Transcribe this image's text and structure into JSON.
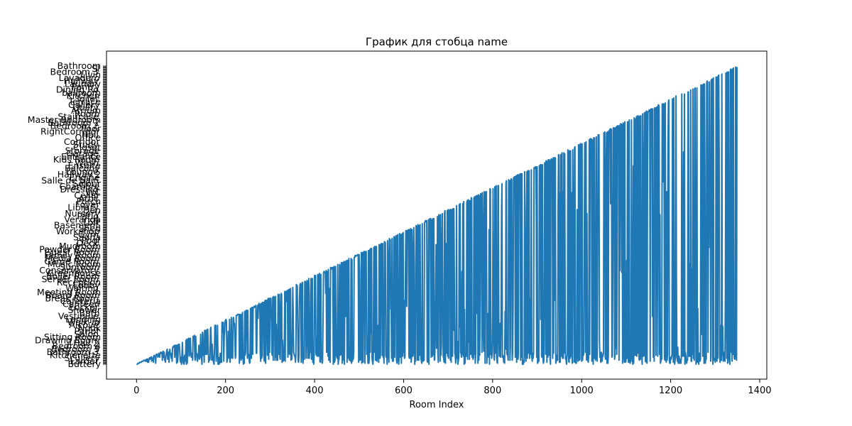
{
  "chart_data": {
    "type": "line",
    "title": "График для стобца name",
    "xlabel": "Room Index",
    "ylabel": "",
    "xlim": [
      -67.5,
      1416
    ],
    "xticks": [
      0,
      200,
      400,
      600,
      800,
      1000,
      1200,
      1400
    ],
    "n_points": 1350,
    "y_category_count": 300,
    "line_color": "#1f77b4",
    "y_tick_labels_visible": [
      "Bathroom",
      "Sl",
      "Bedroom 3",
      "Livin",
      "Lavadero",
      "Hallway",
      "Laundry",
      "Pantry",
      "Dining Ro",
      "ballroom",
      "Kitchen",
      "Toilet",
      "Terrace",
      "Gallery",
      "Utility",
      "Atrium",
      "Room",
      "Staircase",
      "Master Bedroom",
      "Bathroom 2",
      "Bedroom 2",
      "floor",
      "RightCorridor",
      "Hall",
      "Office",
      "Corridor",
      "Study",
      "Closet",
      "Storage",
      "Garage",
      "Entrance",
      "Kids Room",
      "Wash",
      "Ensuite",
      "Balcony",
      "Lounge",
      "Hallway 2",
      "Engine",
      "Salle de bain",
      "Sejour",
      "Chambre",
      "Dressing",
      "WC",
      "Cellar",
      "Attic",
      "Porch",
      "Foyer",
      "Library",
      "Den",
      "Nursery",
      "Patio",
      "Veranda",
      "Loft",
      "Basement",
      "Shed",
      "Workshop",
      "Gym",
      "Sauna",
      "Pool",
      "Deck",
      "Mudroom",
      "Powder Room",
      "Guest Room",
      "Family Room",
      "Media Room",
      "Game Room",
      "Music Room",
      "Sunroom",
      "Conservatory",
      "Greenhouse",
      "Boiler Room",
      "Server Room",
      "Reception",
      "Lobby",
      "Waiting",
      "Meeting Room",
      "Board Room",
      "Break Room",
      "Cafeteria",
      "Canteen",
      "Locker",
      "Shower",
      "Bath",
      "Vestibule",
      "Landing",
      "Walk-in",
      "Alcove",
      "Nook",
      "Parlor",
      "Salon",
      "Sitting Room",
      "Drawing Room",
      "Hall 2",
      "Bedroom 4",
      "Bedroom 5",
      "Bathroom 3",
      "Kitchenette",
      "Scullery",
      "Larder",
      "Buttery"
    ]
  }
}
